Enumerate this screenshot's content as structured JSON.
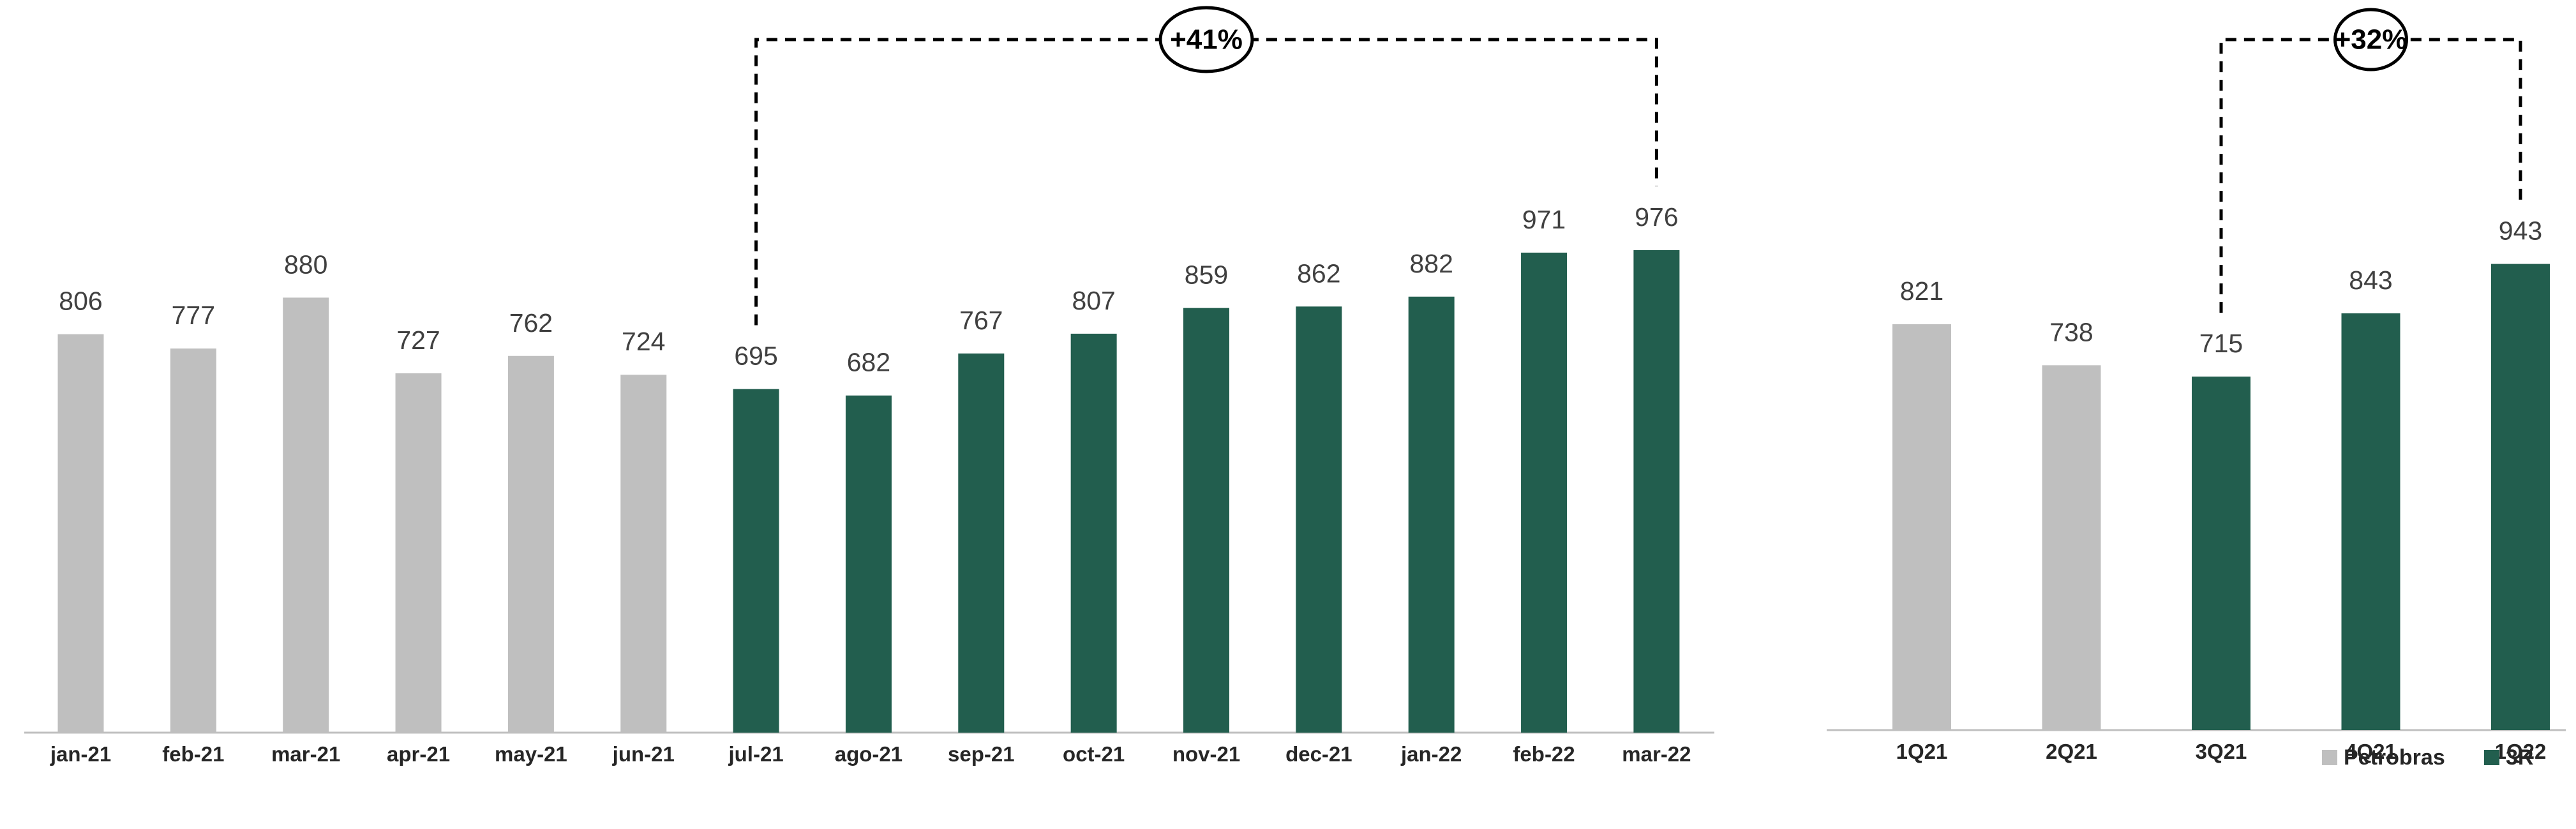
{
  "colors": {
    "petrobras": "#bfbfbf",
    "three_r": "#225e4e"
  },
  "chart_data": [
    {
      "type": "bar",
      "categories": [
        "jan-21",
        "feb-21",
        "mar-21",
        "apr-21",
        "may-21",
        "jun-21",
        "jul-21",
        "ago-21",
        "sep-21",
        "oct-21",
        "nov-21",
        "dec-21",
        "jan-22",
        "feb-22",
        "mar-22"
      ],
      "values": [
        806,
        777,
        880,
        727,
        762,
        724,
        695,
        682,
        767,
        807,
        859,
        862,
        882,
        971,
        976
      ],
      "operator": [
        "Petrobras",
        "Petrobras",
        "Petrobras",
        "Petrobras",
        "Petrobras",
        "Petrobras",
        "3R",
        "3R",
        "3R",
        "3R",
        "3R",
        "3R",
        "3R",
        "3R",
        "3R"
      ],
      "annotation": {
        "label": "+41%",
        "from": "jul-21",
        "to": "mar-22"
      },
      "ylim": [
        0,
        1000
      ],
      "grid": false
    },
    {
      "type": "bar",
      "categories": [
        "1Q21",
        "2Q21",
        "3Q21",
        "4Q21",
        "1Q22"
      ],
      "values": [
        821,
        738,
        715,
        843,
        943
      ],
      "operator": [
        "Petrobras",
        "Petrobras",
        "3R",
        "3R",
        "3R"
      ],
      "annotation": {
        "label": "+32%",
        "from": "3Q21",
        "to": "1Q22"
      },
      "ylim": [
        0,
        1000
      ],
      "grid": false
    }
  ],
  "legend": {
    "placement": "bottom-right",
    "items": [
      {
        "name": "Petrobras",
        "color": "#bfbfbf"
      },
      {
        "name": "3R",
        "color": "#225e4e"
      }
    ]
  }
}
